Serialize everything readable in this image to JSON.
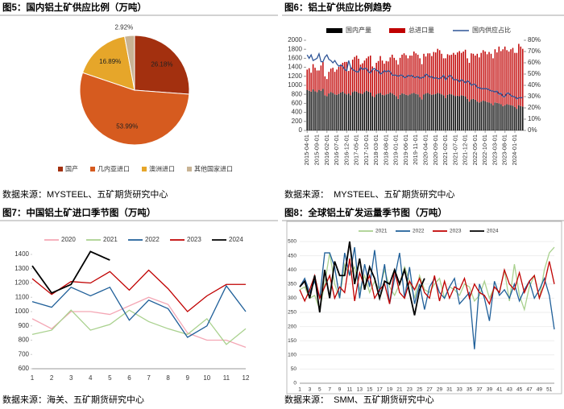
{
  "chart_data": [
    {
      "type": "pie",
      "title": "图5：国内铝土矿供应比例（万吨）",
      "source": "数据来源：MYSTEEL、五矿期货研究中心",
      "categories": [
        "国产",
        "几内亚进口",
        "澳洲进口",
        "其他国家进口"
      ],
      "values": [
        26.18,
        53.99,
        16.89,
        2.92
      ],
      "value_labels": [
        "26.18%",
        "53.99%",
        "16.89%",
        "2.92%"
      ],
      "colors": [
        "#a3300f",
        "#d65b1f",
        "#e6a62a",
        "#c8b394"
      ]
    },
    {
      "type": "combo",
      "title": "图6：铝土矿供应比例趋势",
      "source": "数据来源：  MYSTEEL、五矿期货研究中心",
      "stacked": true,
      "x": [
        "2015-04-01",
        null,
        null,
        null,
        null,
        "2015-09-01",
        null,
        null,
        null,
        null,
        "2016-02-01",
        null,
        null,
        null,
        null,
        "2016-07-01",
        null,
        null,
        null,
        null,
        "2016-12-01",
        null,
        null,
        null,
        null,
        "2017-05-01",
        null,
        null,
        null,
        null,
        "2017-10-01",
        null,
        null,
        null,
        null,
        "2018-03-01",
        null,
        null,
        null,
        null,
        "2018-08-01",
        null,
        null,
        null,
        null,
        "2019-01-01",
        null,
        null,
        null,
        null,
        "2019-06-01",
        null,
        null,
        null,
        null,
        "2019-11-01",
        null,
        null,
        null,
        null,
        "2020-04-01",
        null,
        null,
        null,
        null,
        "2020-09-01",
        null,
        null,
        null,
        null,
        "2021-02-01",
        null,
        null,
        null,
        null,
        "2021-07-01",
        null,
        null,
        null,
        null,
        "2021-12-01",
        null,
        null,
        null,
        null,
        "2022-05-01",
        null,
        null,
        null,
        null,
        "2022-10-01",
        null,
        null,
        null,
        null,
        "2023-03-01",
        null,
        null,
        null,
        null,
        "2023-08-01",
        null,
        null,
        null,
        null,
        "2024-01-01",
        null,
        null,
        null,
        null
      ],
      "ylim": [
        0,
        2000
      ],
      "yticks": [
        0,
        200,
        400,
        600,
        800,
        1000,
        1200,
        1400,
        1600,
        1800,
        2000
      ],
      "y2lim": [
        0,
        80
      ],
      "y2ticks": [
        {
          "value": 0,
          "label": "0%"
        },
        {
          "value": 10,
          "label": "10%"
        },
        {
          "value": 20,
          "label": "20%"
        },
        {
          "value": 30,
          "label": "30%"
        },
        {
          "value": 40,
          "label": "40%"
        },
        {
          "value": 50,
          "label": "50%"
        },
        {
          "value": 60,
          "label": "60%"
        },
        {
          "value": 70,
          "label": "70%"
        },
        {
          "value": 80,
          "label": "80%"
        }
      ],
      "series": [
        {
          "name": "国内产量",
          "color": "#000000",
          "kind": "bar",
          "values": [
            900,
            880,
            860,
            910,
            870,
            850,
            900,
            880,
            920,
            780,
            760,
            820,
            850,
            830,
            800,
            790,
            810,
            840,
            860,
            820,
            800,
            820,
            780,
            850,
            870,
            860,
            830,
            820,
            810,
            850,
            880,
            860,
            840,
            760,
            740,
            800,
            820,
            830,
            790,
            780,
            800,
            810,
            840,
            820,
            790,
            760,
            700,
            790,
            820,
            810,
            790,
            780,
            800,
            820,
            830,
            810,
            800,
            740,
            690,
            800,
            820,
            830,
            810,
            790,
            800,
            810,
            830,
            820,
            800,
            780,
            720,
            790,
            810,
            800,
            780,
            760,
            770,
            760,
            780,
            770,
            750,
            700,
            640,
            690,
            700,
            680,
            640,
            620,
            640,
            660,
            650,
            630,
            620,
            600,
            560,
            620,
            610,
            600,
            580,
            540,
            560,
            580,
            570,
            560,
            550,
            520,
            480,
            560,
            540,
            530
          ]
        },
        {
          "name": "总进口量",
          "color": "#c00000",
          "kind": "bar",
          "values": [
            450,
            500,
            420,
            560,
            520,
            480,
            430,
            560,
            600,
            420,
            380,
            480,
            520,
            560,
            500,
            560,
            600,
            620,
            640,
            700,
            720,
            500,
            620,
            720,
            760,
            800,
            760,
            640,
            680,
            700,
            720,
            780,
            820,
            660,
            600,
            700,
            720,
            820,
            760,
            700,
            740,
            720,
            780,
            860,
            820,
            800,
            760,
            820,
            860,
            900,
            880,
            820,
            860,
            840,
            920,
            900,
            880,
            860,
            780,
            900,
            820,
            880,
            900,
            860,
            940,
            920,
            980,
            960,
            900,
            820,
            880,
            900,
            860,
            880,
            940,
            920,
            960,
            1000,
            940,
            980,
            1040,
            900,
            860,
            1020,
            1000,
            980,
            1060,
            1000,
            1080,
            1120,
            1100,
            1060,
            1120,
            1100,
            1040,
            1180,
            1120,
            1260,
            1180,
            1260,
            1300,
            1200,
            1180,
            1240,
            1280,
            1200,
            1240,
            1360,
            1320,
            1280
          ]
        },
        {
          "name": "国内供应占比",
          "color": "#2f5597",
          "kind": "line",
          "axis": "y2",
          "values": [
            67,
            64,
            67,
            62,
            63,
            64,
            68,
            61,
            61,
            65,
            67,
            63,
            62,
            60,
            62,
            59,
            57,
            58,
            57,
            54,
            53,
            62,
            56,
            54,
            53,
            52,
            52,
            56,
            54,
            55,
            55,
            52,
            51,
            54,
            55,
            53,
            53,
            50,
            51,
            53,
            52,
            53,
            52,
            49,
            49,
            49,
            48,
            49,
            49,
            47,
            47,
            49,
            48,
            49,
            47,
            47,
            48,
            46,
            47,
            47,
            50,
            49,
            47,
            48,
            46,
            47,
            46,
            46,
            47,
            49,
            45,
            47,
            49,
            48,
            45,
            45,
            45,
            43,
            45,
            44,
            42,
            44,
            43,
            40,
            41,
            41,
            38,
            38,
            37,
            37,
            37,
            37,
            36,
            35,
            35,
            34,
            35,
            32,
            33,
            30,
            30,
            33,
            33,
            31,
            30,
            30,
            28,
            29,
            29,
            29
          ]
        }
      ]
    },
    {
      "type": "line",
      "title": "图7：中国铝土矿进口季节图（万吨）",
      "source": "数据来源：海关、五矿期货研究中心",
      "categories": [
        1,
        2,
        3,
        4,
        5,
        6,
        7,
        8,
        9,
        10,
        11,
        12
      ],
      "ylim": [
        600,
        1400
      ],
      "yticks": [
        600,
        700,
        800,
        900,
        1000,
        1100,
        1200,
        1300,
        1400
      ],
      "series": [
        {
          "name": "2020",
          "color": "#f4a7b5",
          "values": [
            950,
            880,
            1000,
            1000,
            980,
            1040,
            1100,
            1050,
            850,
            800,
            800,
            750
          ]
        },
        {
          "name": "2021",
          "color": "#a9d18e",
          "values": [
            840,
            870,
            1010,
            870,
            910,
            1010,
            930,
            880,
            840,
            950,
            770,
            880
          ]
        },
        {
          "name": "2022",
          "color": "#1f5f99",
          "values": [
            1070,
            1030,
            1170,
            1110,
            1170,
            940,
            1080,
            1020,
            820,
            900,
            1180,
            1000
          ]
        },
        {
          "name": "2023",
          "color": "#c00000",
          "values": [
            1230,
            1120,
            1210,
            1200,
            1280,
            1150,
            1290,
            1160,
            1000,
            1110,
            1190,
            1190
          ]
        },
        {
          "name": "2024",
          "color": "#000000",
          "values": [
            1320,
            1130,
            1190,
            1420,
            1360,
            null,
            null,
            null,
            null,
            null,
            null,
            null
          ]
        }
      ]
    },
    {
      "type": "line",
      "title": "图8：全球铝土矿发运量季节图（万吨）",
      "source": "数据来源：  SMM、五矿期货研究中心",
      "frame": true,
      "categories": [
        1,
        null,
        3,
        null,
        5,
        null,
        7,
        null,
        9,
        null,
        11,
        null,
        13,
        null,
        15,
        null,
        17,
        null,
        19,
        null,
        21,
        null,
        23,
        null,
        25,
        null,
        27,
        null,
        29,
        null,
        31,
        null,
        33,
        null,
        35,
        null,
        37,
        null,
        39,
        null,
        41,
        null,
        43,
        null,
        45,
        null,
        47,
        null,
        49,
        null,
        51,
        null
      ],
      "ylim": [
        0,
        500
      ],
      "yticks": [
        0,
        50,
        100,
        150,
        200,
        250,
        300,
        350,
        400,
        450,
        500
      ],
      "series": [
        {
          "name": "2021",
          "color": "#a9d18e",
          "values": [
            330,
            340,
            300,
            310,
            260,
            350,
            460,
            350,
            300,
            420,
            380,
            410,
            330,
            380,
            320,
            360,
            330,
            400,
            340,
            310,
            350,
            410,
            360,
            300,
            380,
            330,
            320,
            350,
            370,
            300,
            340,
            330,
            310,
            350,
            340,
            290,
            310,
            360,
            300,
            340,
            320,
            400,
            290,
            420,
            310,
            260,
            340,
            380,
            300,
            400,
            460,
            480
          ]
        },
        {
          "name": "2022",
          "color": "#1f5f99",
          "values": [
            340,
            370,
            320,
            360,
            300,
            460,
            460,
            410,
            300,
            460,
            380,
            480,
            300,
            420,
            340,
            470,
            320,
            420,
            280,
            370,
            460,
            300,
            410,
            280,
            350,
            260,
            340,
            370,
            320,
            300,
            340,
            370,
            280,
            300,
            320,
            120,
            350,
            300,
            220,
            360,
            310,
            330,
            300,
            350,
            290,
            330,
            360,
            300,
            330,
            370,
            310,
            190
          ]
        },
        {
          "name": "2023",
          "color": "#c00000",
          "values": [
            330,
            290,
            330,
            380,
            300,
            340,
            380,
            300,
            340,
            320,
            440,
            290,
            390,
            340,
            380,
            300,
            330,
            350,
            280,
            400,
            320,
            300,
            360,
            330,
            370,
            320,
            300,
            380,
            290,
            360,
            300,
            340,
            330,
            370,
            300,
            350,
            320,
            310,
            280,
            340,
            320,
            400,
            350,
            330,
            390,
            320,
            360,
            380,
            300,
            350,
            430,
            350
          ]
        },
        {
          "name": "2024",
          "color": "#000000",
          "values": [
            340,
            360,
            300,
            380,
            250,
            400,
            300,
            430,
            380,
            380,
            500,
            350,
            440,
            330,
            410,
            370,
            300,
            360,
            350,
            400,
            350,
            400,
            320,
            240,
            330,
            370,
            null,
            null,
            null,
            null,
            null,
            null,
            null,
            null,
            null,
            null,
            null,
            null,
            null,
            null,
            null,
            null,
            null,
            null,
            null,
            null,
            null,
            null,
            null,
            null,
            null,
            null
          ]
        }
      ]
    }
  ]
}
